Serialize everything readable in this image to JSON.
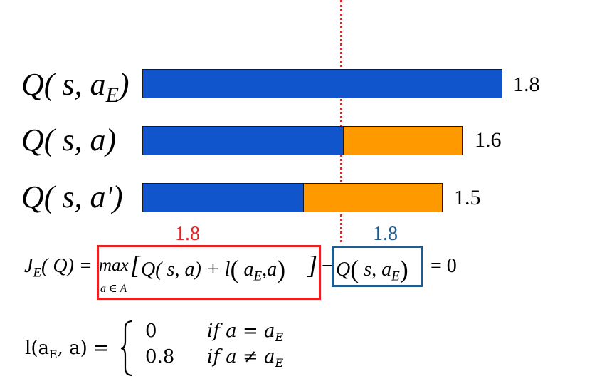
{
  "colors": {
    "blue": "#1155cc",
    "orange": "#ff9900",
    "red": "#e52121",
    "steel_blue": "#1f5c8f"
  },
  "rows": [
    {
      "label": "Q( s, a_E )",
      "label_main": "Q( s, a",
      "label_sub": "E",
      "label_close": ")",
      "value_text": "1.8",
      "total": 1.8,
      "base": 1.8,
      "margin": 0.0
    },
    {
      "label": "Q( s, a)",
      "label_main": "Q( s, a)",
      "value_text": "1.6",
      "total": 1.6,
      "base": 1.0,
      "margin": 0.6
    },
    {
      "label": "Q( s, a')",
      "label_main": "Q( s, a')",
      "value_text": "1.5",
      "total": 1.5,
      "base": 0.8,
      "margin": 0.7
    }
  ],
  "annotations": {
    "left_max": "1.8",
    "right_max": "1.8"
  },
  "equation1": {
    "lhs": "J",
    "lhs_sub": "E",
    "lhs_arg": "( Q) =",
    "max": "max",
    "max_sub": "a ∈ A",
    "bracket_open": "[",
    "inner": "Q( s, a) + l",
    "inner_paren_open": "(",
    "inner_a": "a",
    "inner_a_sub": "E",
    "inner_rest": ",a",
    "inner_paren_close": ")",
    "bracket_close": "]",
    "minus": "−",
    "q2": "Q",
    "q2_paren_open": "(",
    "q2_inner": "s, a",
    "q2_sub": "E",
    "q2_paren_close": ")",
    "rhs": "= 0"
  },
  "equation2": {
    "lhs": "l(a",
    "lhs_sub": "E",
    "lhs_rest": ", a) =",
    "case1_value": "0",
    "case1_cond": "if a = a",
    "case1_sub": "E",
    "case2_value": "0.8",
    "case2_cond": "if a ≠ a",
    "case2_sub": "E"
  }
}
